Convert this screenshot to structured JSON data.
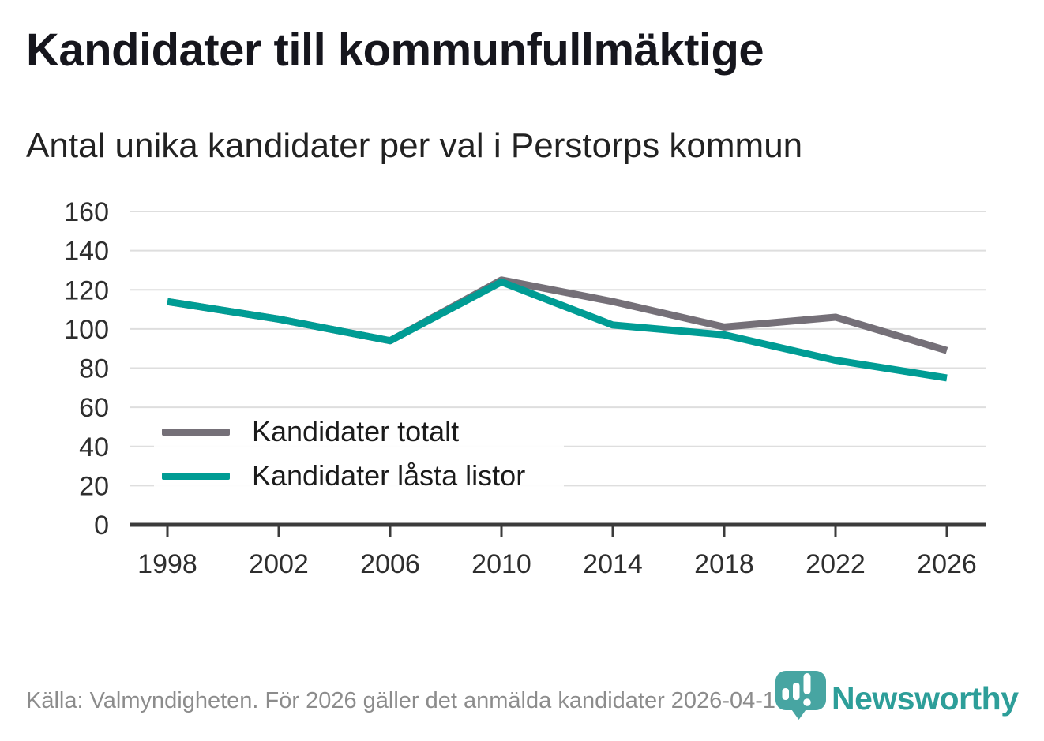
{
  "header": {
    "title": "Kandidater till kommunfullmäktige",
    "subtitle": "Antal unika kandidater per val i Perstorps kommun"
  },
  "chart_data": {
    "type": "line",
    "title": "Kandidater till kommunfullmäktige",
    "subtitle": "Antal unika kandidater per val i Perstorps kommun",
    "categories": [
      "1998",
      "2002",
      "2006",
      "2010",
      "2014",
      "2018",
      "2022",
      "2026"
    ],
    "series": [
      {
        "name": "Kandidater totalt",
        "color": "#757078",
        "values": [
          114,
          105,
          94,
          125,
          114,
          101,
          106,
          89
        ]
      },
      {
        "name": "Kandidater låsta listor",
        "color": "#009c94",
        "values": [
          114,
          105,
          94,
          124,
          102,
          97,
          84,
          75
        ]
      }
    ],
    "xlabel": "",
    "ylabel": "",
    "ylim": [
      0,
      160
    ],
    "y_ticks": [
      0,
      20,
      40,
      60,
      80,
      100,
      120,
      140,
      160
    ],
    "grid": "horizontal",
    "legend_position": "inside-bottom-left"
  },
  "footer": {
    "source": "Källa: Valmyndigheten. För 2026 gäller det anmälda kandidater 2026-04-10.",
    "brand": "Newsworthy"
  },
  "colors": {
    "teal_line": "#009c94",
    "gray_line": "#757078",
    "grid_line": "#dedede",
    "axis_line": "#3b3b3b",
    "tick_label": "#2e2e2e",
    "title_text": "#16161d",
    "source_text": "#8c8c8c",
    "logo_pin": "#47a5a2",
    "logo_wordmark": "#2d9e99"
  }
}
